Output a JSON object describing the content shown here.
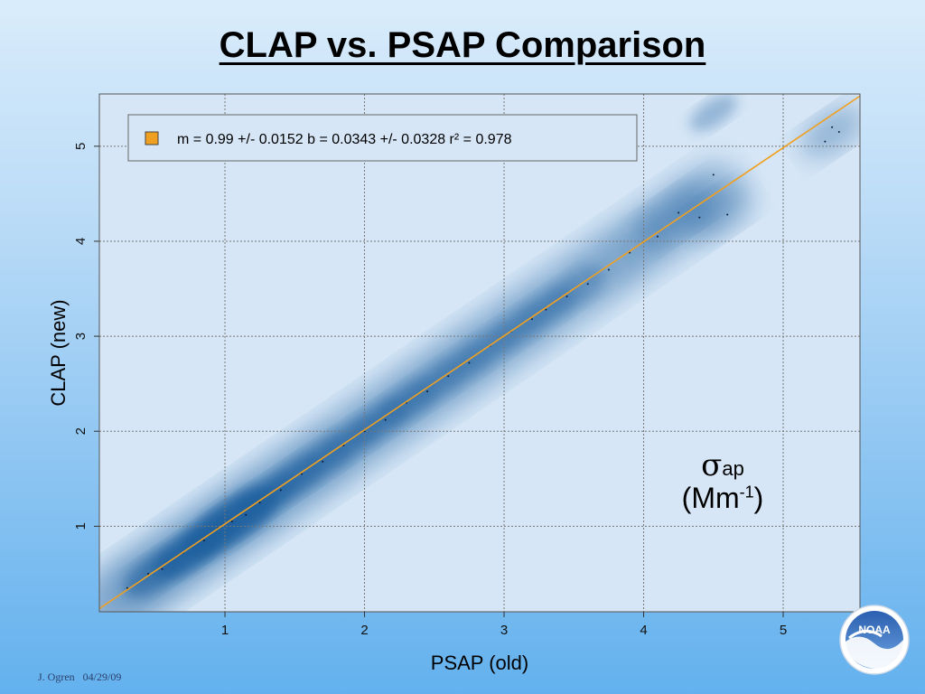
{
  "slide": {
    "title": "CLAP vs. PSAP Comparison",
    "footer_author": "J. Ogren",
    "footer_date": "04/29/09",
    "logo_text": "NOAA"
  },
  "annotation": {
    "symbol": "σ",
    "subscript": "ap",
    "unit_open": "(Mm",
    "unit_exp": "-1",
    "unit_close": ")"
  },
  "chart_data": {
    "type": "scatter",
    "title": "",
    "xlabel": "PSAP (old)",
    "ylabel": "CLAP (new)",
    "xlim": [
      0.1,
      5.55
    ],
    "ylim": [
      0.1,
      5.55
    ],
    "xticks": [
      "1",
      "2",
      "3",
      "4",
      "5"
    ],
    "yticks": [
      "1",
      "2",
      "3",
      "4",
      "5"
    ],
    "grid": true,
    "legend": {
      "placement": "top-left",
      "label": "m = 0.99 +/- 0.0152 b = 0.0343 +/- 0.0328 r² = 0.978",
      "color": "#f0a020"
    },
    "fit": {
      "slope": 0.99,
      "intercept": 0.0343,
      "color": "#f0a020"
    },
    "density_style": "smoothed-scatter",
    "density_color": "#1f5f9e",
    "series": [
      {
        "values_x": [
          0.3,
          0.45,
          0.55,
          0.7,
          0.85,
          0.95,
          1.05,
          1.15,
          1.25,
          1.4,
          1.55,
          1.7,
          1.85,
          2.0,
          2.15,
          2.3,
          2.45,
          2.6,
          2.75,
          2.9,
          3.05,
          3.2,
          3.3,
          3.45,
          3.6,
          3.75,
          3.9,
          4.1,
          4.25,
          4.4,
          4.5,
          4.6,
          5.3,
          5.4,
          5.35
        ],
        "values_y": [
          0.35,
          0.5,
          0.55,
          0.72,
          0.85,
          0.98,
          1.05,
          1.12,
          1.25,
          1.38,
          1.55,
          1.68,
          1.85,
          2.0,
          2.12,
          2.3,
          2.42,
          2.58,
          2.72,
          2.9,
          3.05,
          3.18,
          3.28,
          3.42,
          3.55,
          3.7,
          3.88,
          4.05,
          4.3,
          4.25,
          4.7,
          4.28,
          5.05,
          5.15,
          5.2
        ]
      }
    ]
  }
}
